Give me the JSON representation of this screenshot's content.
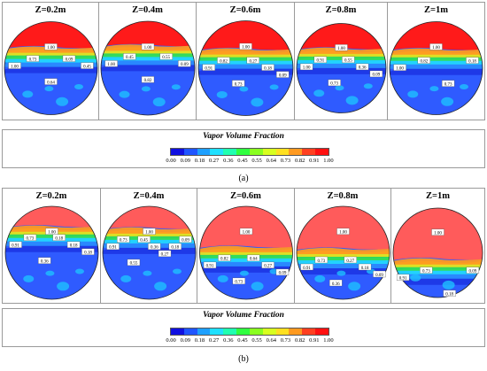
{
  "panel_a": {
    "caption": "(a)",
    "columns": [
      {
        "z": "Z=0.2m",
        "top_fill": 0.42,
        "labels": [
          "1.00",
          "1.00",
          "0.73",
          "0.64",
          "0.09",
          "0.45"
        ]
      },
      {
        "z": "Z=0.4m",
        "top_fill": 0.4,
        "labels": [
          "1.00",
          "1.00",
          "0.45",
          "0.82",
          "0.55",
          "0.09"
        ]
      },
      {
        "z": "Z=0.6m",
        "top_fill": 0.44,
        "labels": [
          "1.00",
          "0.91",
          "0.82",
          "0.73",
          "0.27",
          "0.18",
          "0.09"
        ]
      },
      {
        "z": "Z=0.8m",
        "top_fill": 0.43,
        "labels": [
          "1.00",
          "1.00",
          "0.91",
          "0.73",
          "0.55",
          "0.36",
          "0.09"
        ]
      },
      {
        "z": "Z=1m",
        "top_fill": 0.44,
        "labels": [
          "1.00",
          "1.00",
          "0.82",
          "0.73",
          "0.18"
        ]
      }
    ],
    "legend": {
      "title": "Vapor Volume Fraction",
      "ticks": [
        "0.00",
        "0.09",
        "0.18",
        "0.27",
        "0.36",
        "0.45",
        "0.55",
        "0.64",
        "0.73",
        "0.82",
        "0.91",
        "1.00"
      ]
    }
  },
  "panel_b": {
    "caption": "(b)",
    "columns": [
      {
        "z": "Z=0.2m",
        "top_fill": 0.36,
        "labels": [
          "1.00",
          "0.91",
          "0.73",
          "0.36",
          "0.18",
          "0.18",
          "0.18"
        ]
      },
      {
        "z": "Z=0.4m",
        "top_fill": 0.38,
        "labels": [
          "1.00",
          "0.91",
          "0.73",
          "0.55",
          "0.45",
          "0.36",
          "0.27",
          "0.18",
          "0.09"
        ]
      },
      {
        "z": "Z=0.6m",
        "top_fill": 0.58,
        "labels": [
          "1.00",
          "0.91",
          "0.82",
          "0.73",
          "0.64",
          "0.27",
          "0.09"
        ]
      },
      {
        "z": "Z=0.8m",
        "top_fill": 0.6,
        "labels": [
          "1.00",
          "0.91",
          "0.73",
          "0.36",
          "0.27",
          "0.18",
          "0.09"
        ]
      },
      {
        "z": "Z=1m",
        "top_fill": 0.72,
        "labels": [
          "1.00",
          "0.91",
          "0.73",
          "0.18",
          "0.09"
        ]
      }
    ],
    "legend": {
      "title": "Vapor Volume Fraction",
      "ticks": [
        "0.00",
        "0.09",
        "0.18",
        "0.27",
        "0.36",
        "0.45",
        "0.55",
        "0.64",
        "0.73",
        "0.82",
        "0.91",
        "1.00"
      ]
    }
  },
  "colors": {
    "vapor_a": "#ff1a1a",
    "vapor_b": "#ff5b5b",
    "liquid": "#2f5bff",
    "liquid_deep": "#1e38e6",
    "interface_green": "#33dd55",
    "interface_yellow": "#e8e020",
    "interface_orange": "#ff9a20",
    "scale": [
      "#1010e0",
      "#1f55ff",
      "#1ea0ff",
      "#1fe0ff",
      "#20ffb0",
      "#30ff40",
      "#8aff20",
      "#d8ff20",
      "#ffe020",
      "#ff9a20",
      "#ff4020",
      "#ff1010"
    ]
  }
}
